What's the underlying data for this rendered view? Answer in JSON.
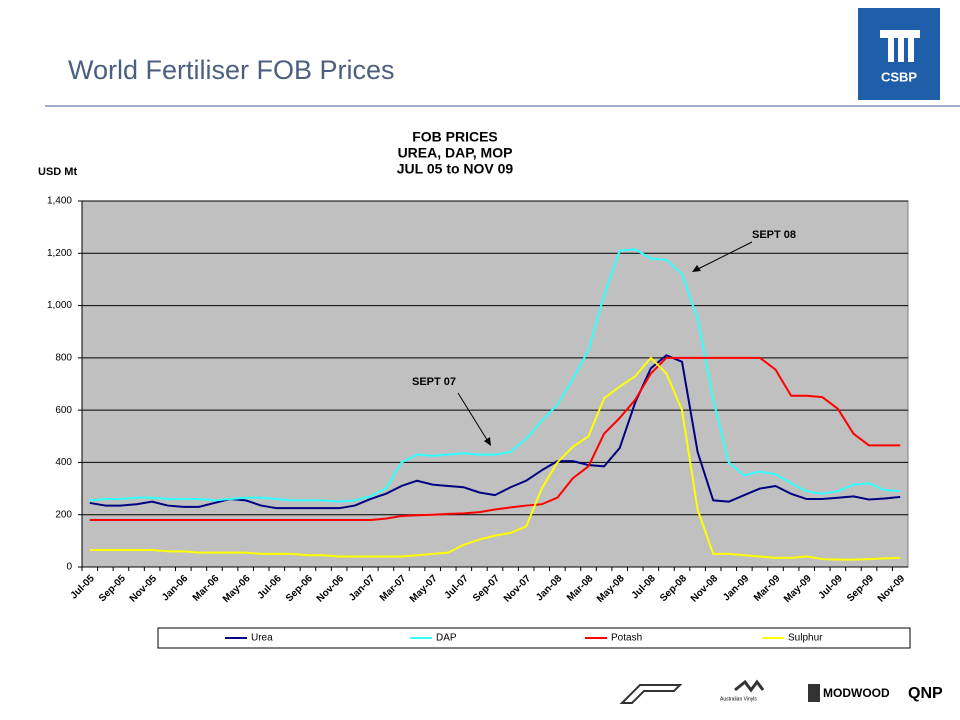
{
  "slide_title": "World Fertiliser FOB Prices",
  "logos": [
    "CSBP",
    "Australian Vinyls",
    "MODWOOD",
    "QNP"
  ],
  "chart_data": {
    "type": "line",
    "title": [
      "FOB PRICES",
      "UREA, DAP, MOP",
      "JUL 05 to NOV 09"
    ],
    "y_axis_label": "USD Mt",
    "annotations": [
      "SEPT 08",
      "SEPT 07"
    ],
    "categories": [
      "Jul-05",
      null,
      "Sep-05",
      null,
      "Nov-05",
      null,
      "Jan-06",
      null,
      "Mar-06",
      null,
      "May-06",
      null,
      "Jul-06",
      null,
      "Sep-06",
      null,
      "Nov-06",
      null,
      "Jan-07",
      null,
      "Mar-07",
      null,
      "May-07",
      null,
      "Jul-07",
      null,
      "Sep-07",
      null,
      "Nov-07",
      null,
      "Jan-08",
      null,
      "Mar-08",
      null,
      "May-08",
      null,
      "Jul-08",
      null,
      "Sep-08",
      null,
      "Nov-08",
      null,
      "Jan-09",
      null,
      "Mar-09",
      null,
      "May-09",
      null,
      "Jul-09",
      null,
      "Sep-09",
      null,
      "Nov-09"
    ],
    "ylim": [
      0,
      1400
    ],
    "yticks": [
      0,
      200,
      400,
      600,
      800,
      {
        "value": 1000,
        "label": "1,000"
      },
      {
        "value": 1200,
        "label": "1,200"
      },
      {
        "value": 1400,
        "label": "1,400"
      }
    ],
    "grid": true,
    "plot_background": "#c0c0c0",
    "legend": "bottom",
    "series": [
      {
        "name": "Urea",
        "color": "#000080",
        "values": [
          245,
          235,
          235,
          240,
          250,
          235,
          230,
          230,
          245,
          260,
          255,
          235,
          225,
          225,
          225,
          225,
          225,
          235,
          260,
          280,
          310,
          330,
          315,
          310,
          305,
          285,
          275,
          305,
          330,
          370,
          405,
          405,
          390,
          385,
          455,
          630,
          760,
          810,
          785,
          440,
          255,
          250,
          275,
          300,
          310,
          280,
          260,
          260,
          265,
          270,
          258,
          262,
          268
        ]
      },
      {
        "name": "DAP",
        "color": "#33ffff",
        "values": [
          255,
          260,
          260,
          265,
          265,
          260,
          260,
          260,
          255,
          260,
          265,
          265,
          260,
          255,
          255,
          255,
          250,
          255,
          270,
          300,
          400,
          430,
          425,
          430,
          435,
          430,
          430,
          440,
          490,
          560,
          620,
          720,
          830,
          1040,
          1210,
          1215,
          1180,
          1175,
          1120,
          950,
          640,
          400,
          350,
          365,
          355,
          320,
          290,
          280,
          290,
          315,
          320,
          295,
          290
        ]
      },
      {
        "name": "Potash",
        "color": "#ff0000",
        "values": [
          180,
          180,
          180,
          180,
          180,
          180,
          180,
          180,
          180,
          180,
          180,
          180,
          180,
          180,
          180,
          180,
          180,
          180,
          180,
          185,
          195,
          198,
          200,
          203,
          205,
          210,
          220,
          228,
          235,
          240,
          265,
          340,
          385,
          510,
          570,
          640,
          740,
          800,
          800,
          800,
          800,
          800,
          800,
          800,
          755,
          655,
          655,
          650,
          605,
          510,
          465,
          465,
          465
        ]
      },
      {
        "name": "Sulphur",
        "color": "#ffff00",
        "values": [
          65,
          65,
          65,
          65,
          65,
          60,
          60,
          55,
          55,
          55,
          55,
          50,
          50,
          50,
          45,
          45,
          40,
          40,
          40,
          40,
          40,
          45,
          50,
          55,
          85,
          105,
          120,
          130,
          155,
          300,
          400,
          460,
          500,
          645,
          690,
          730,
          800,
          740,
          600,
          220,
          50,
          50,
          45,
          40,
          35,
          35,
          40,
          30,
          28,
          28,
          30,
          33,
          35
        ]
      }
    ]
  }
}
